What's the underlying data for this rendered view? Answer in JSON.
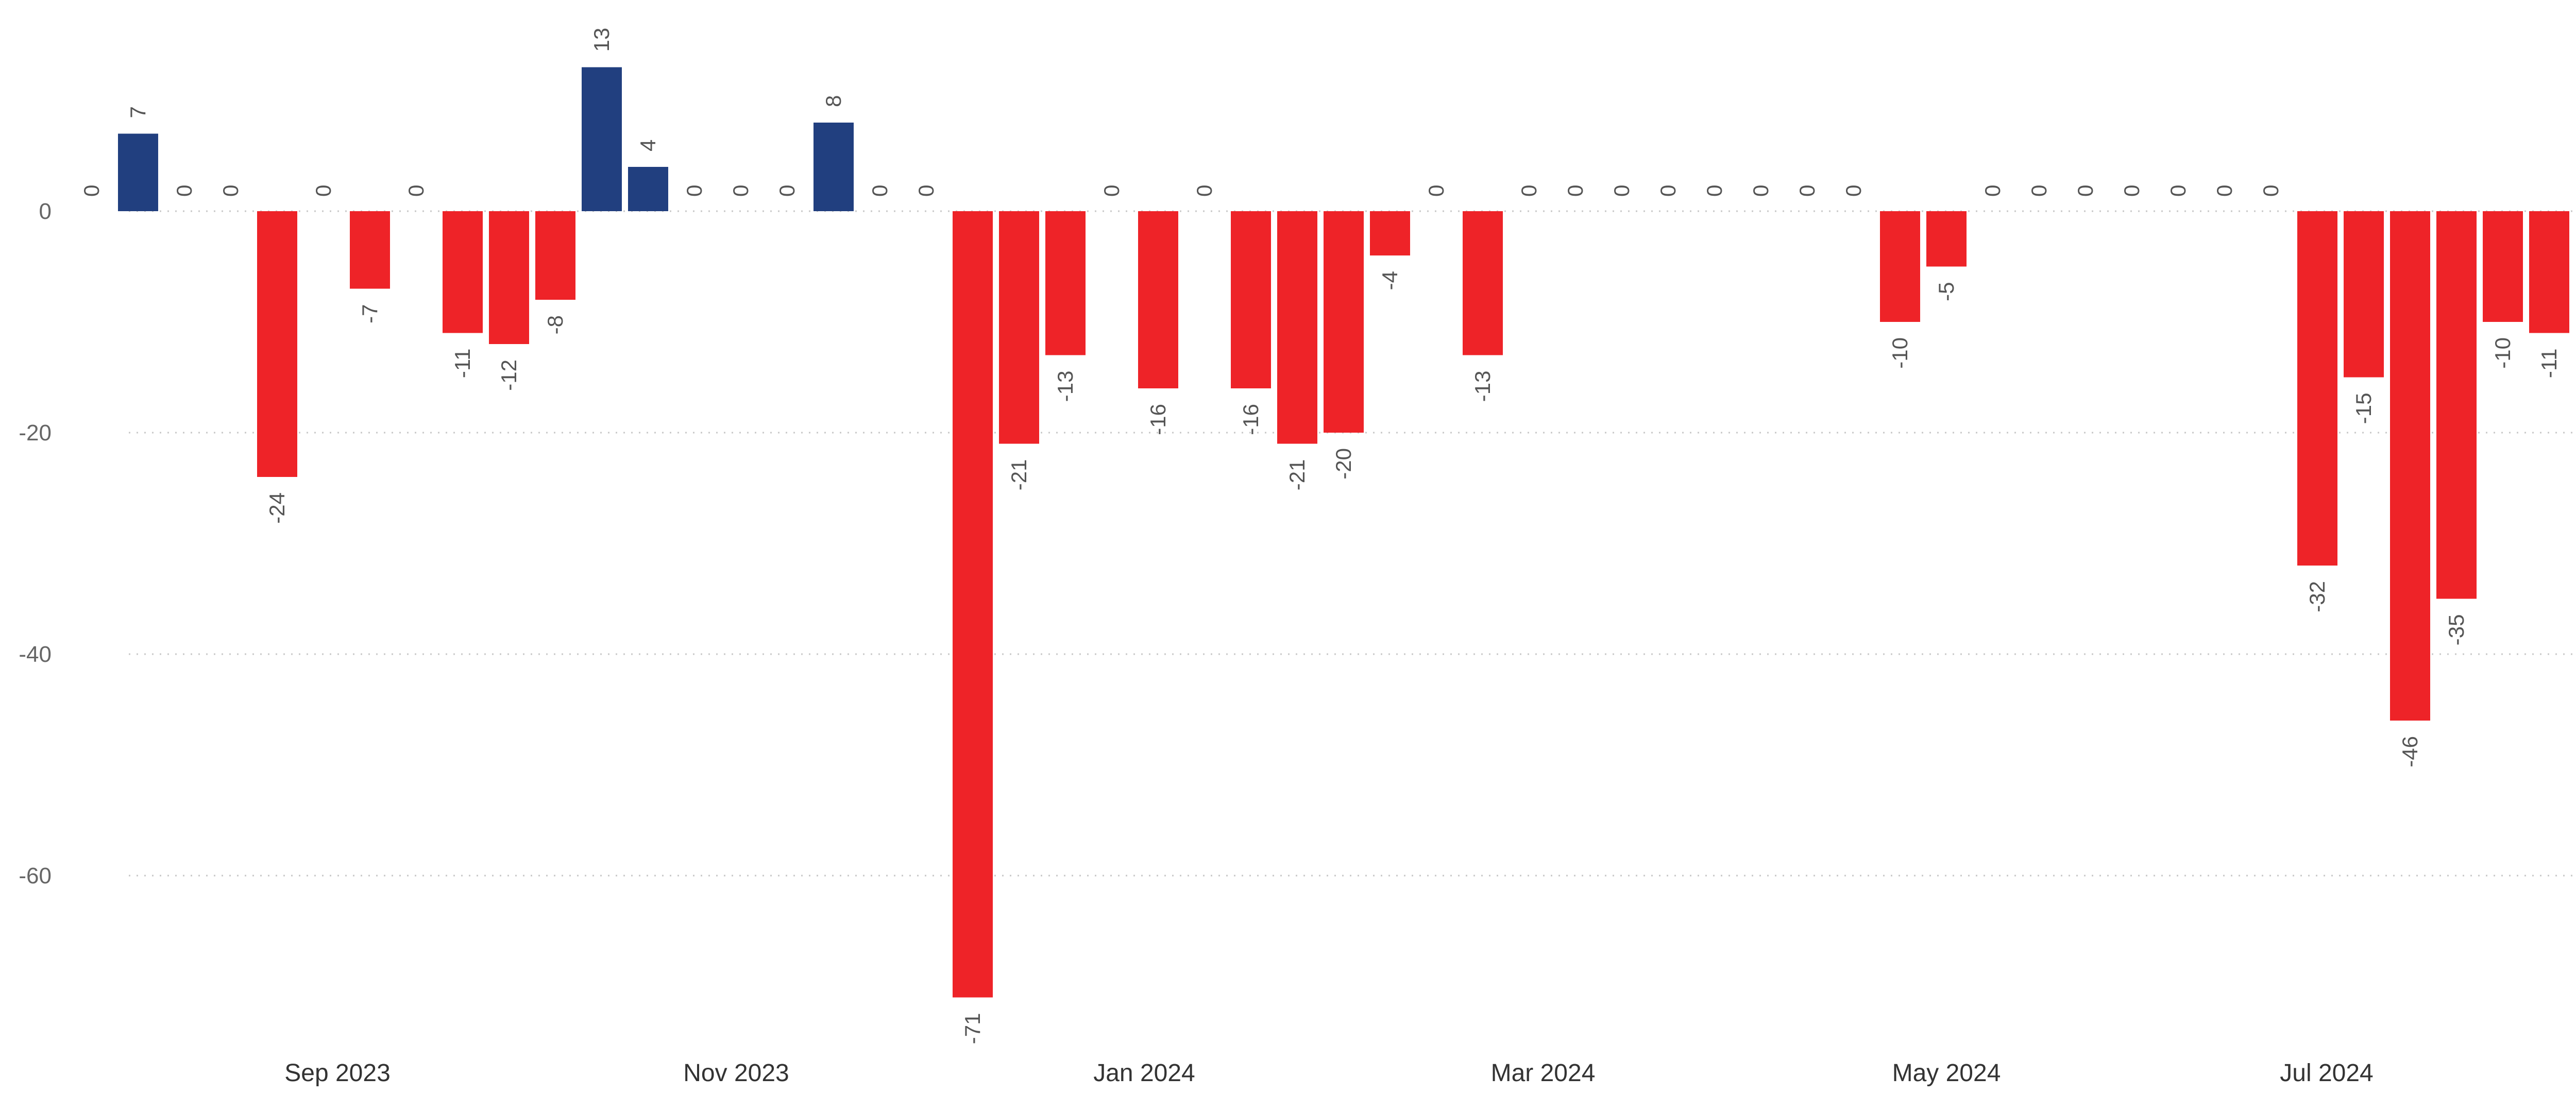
{
  "chart_data": {
    "type": "bar",
    "title": "",
    "xlabel": "",
    "ylabel": "",
    "ylim": [
      -75,
      18
    ],
    "y_ticks": [
      0,
      -20,
      -40,
      -60
    ],
    "x_tick_labels": [
      "Sep 2023",
      "Nov 2023",
      "Jan 2024",
      "Mar 2024",
      "May 2024",
      "Jul 2024"
    ],
    "x_tick_positions": [
      5.3,
      13.9,
      22.7,
      31.3,
      40.0,
      48.2
    ],
    "grid": true,
    "legend": "none",
    "colors": {
      "positive": "#213F7F",
      "negative": "#EE2328"
    },
    "values": [
      0,
      7,
      0,
      0,
      -24,
      0,
      -7,
      0,
      -11,
      -12,
      -8,
      13,
      4,
      0,
      0,
      0,
      8,
      0,
      0,
      -71,
      -21,
      -13,
      0,
      -16,
      0,
      -16,
      -21,
      -20,
      -4,
      0,
      -13,
      0,
      0,
      0,
      0,
      0,
      0,
      0,
      0,
      -10,
      -5,
      0,
      0,
      0,
      0,
      0,
      0,
      0,
      -32,
      -15,
      -46,
      -35,
      -10,
      -11
    ],
    "data_labels": [
      "0",
      "7",
      "0",
      "0",
      "-24",
      "0",
      "-7",
      "0",
      "-11",
      "-12",
      "-8",
      "13",
      "4",
      "0",
      "0",
      "0",
      "8",
      "0",
      "0",
      "-71",
      "-21",
      "-13",
      "0",
      "-16",
      "0",
      "-16",
      "-21",
      "-20",
      "-4",
      "0",
      "-13",
      "0",
      "0",
      "0",
      "0",
      "0",
      "0",
      "0",
      "0",
      "-10",
      "-5",
      "0",
      "0",
      "0",
      "0",
      "0",
      "0",
      "0",
      "-32",
      "-15",
      "-46",
      "-35",
      "-10",
      "-11"
    ]
  }
}
